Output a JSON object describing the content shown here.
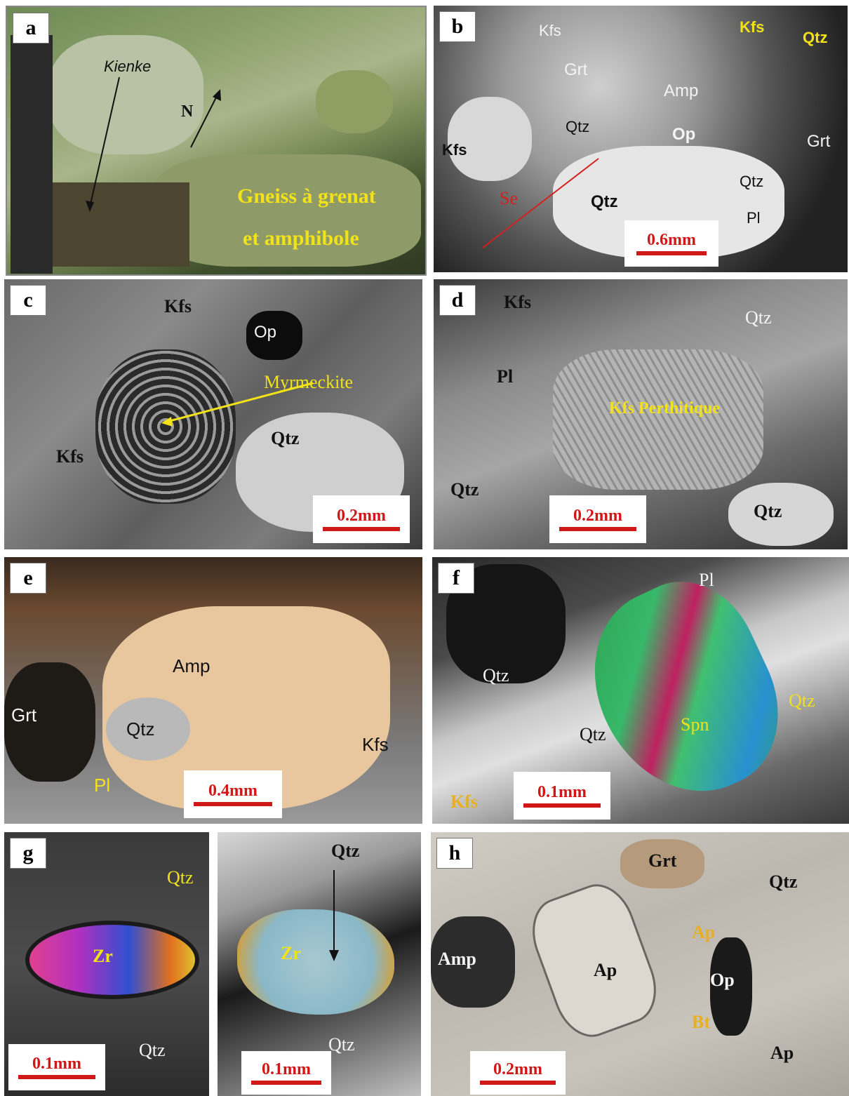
{
  "panels": {
    "a": {
      "tag": "a",
      "labels": {
        "kienke": "Kienke",
        "north": "N",
        "caption_l1": "Gneiss à grenat",
        "caption_l2": "et amphibole"
      }
    },
    "b": {
      "tag": "b",
      "labels": {
        "kfs1": "Kfs",
        "kfs2": "Kfs",
        "qtz1": "Qtz",
        "grt1": "Grt",
        "amp": "Amp",
        "qtz2": "Qtz",
        "op": "Op",
        "kfs3": "Kfs",
        "grt2": "Grt",
        "se": "Se",
        "qtz3": "Qtz",
        "qtz4": "Qtz",
        "pl": "Pl"
      },
      "scale": "0.6mm"
    },
    "c": {
      "tag": "c",
      "labels": {
        "kfs1": "Kfs",
        "op": "Op",
        "myrmeckite": "Myrmeckite",
        "qtz": "Qtz",
        "kfs2": "Kfs"
      },
      "scale": "0.2mm"
    },
    "d": {
      "tag": "d",
      "labels": {
        "kfs": "Kfs",
        "qtz1": "Qtz",
        "pl": "Pl",
        "kfs_perthitique": "Kfs Perthitique",
        "qtz2": "Qtz",
        "qtz3": "Qtz"
      },
      "scale": "0.2mm"
    },
    "e": {
      "tag": "e",
      "labels": {
        "amp": "Amp",
        "grt": "Grt",
        "qtz": "Qtz",
        "kfs": "Kfs",
        "pl": "Pl"
      },
      "scale": "0.4mm"
    },
    "f": {
      "tag": "f",
      "labels": {
        "pl": "Pl",
        "qtz1": "Qtz",
        "qtz2": "Qtz",
        "qtz3": "Qtz",
        "spn": "Spn",
        "kfs": "Kfs"
      },
      "scale": "0.1mm"
    },
    "g_left": {
      "tag": "g",
      "labels": {
        "qtz1": "Qtz",
        "zr": "Zr",
        "qtz2": "Qtz"
      },
      "scale": "0.1mm"
    },
    "g_right": {
      "labels": {
        "qtz1": "Qtz",
        "zr": "Zr",
        "qtz2": "Qtz"
      },
      "scale": "0.1mm"
    },
    "h": {
      "tag": "h",
      "labels": {
        "grt": "Grt",
        "qtz": "Qtz",
        "ap1": "Ap",
        "amp": "Amp",
        "ap2": "Ap",
        "op": "Op",
        "bt": "Bt",
        "ap3": "Ap"
      },
      "scale": "0.2mm"
    }
  }
}
